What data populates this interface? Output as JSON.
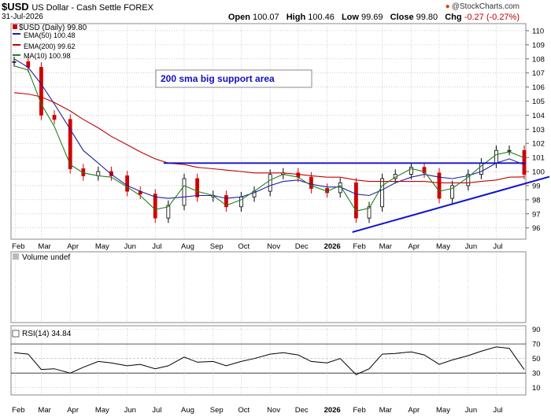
{
  "header": {
    "symbol": "$USD",
    "description": "US Dollar - Cash Settle FOREX",
    "date": "31-Jul-2026",
    "copyright": "@StockCharts.com",
    "quote": {
      "open_label": "Open",
      "open": "100.07",
      "high_label": "High",
      "high": "100.46",
      "low_label": "Low",
      "low": "99.69",
      "close_label": "Close",
      "close": "99.80",
      "chg_label": "Chg",
      "chg": "-0.27 (-0.27%)"
    }
  },
  "legend": {
    "price": "$USD (Daily) 99.80",
    "ema50": "EMA(50) 100.48",
    "ema200": "EMA(200) 99.62",
    "ma10": "MA(10) 100.98"
  },
  "annotation": "200 sma big support area",
  "volume_label": "Volume undef",
  "rsi_label": "RSI(14) 34.84",
  "colors": {
    "ema50": "#2020a0",
    "ema200": "#c00000",
    "ma10": "#208020",
    "trendline": "#1010d0",
    "candle_up": "#000000",
    "candle_down": "#d00000",
    "grid": "#b0b0b0"
  },
  "chart_data": [
    {
      "type": "line",
      "title": "$USD (Daily)",
      "x_axis_labels": [
        "Feb",
        "Mar",
        "Apr",
        "May",
        "Jun",
        "Jul",
        "Aug",
        "Sep",
        "Oct",
        "Nov",
        "Dec",
        "2026",
        "Feb",
        "Mar",
        "Apr",
        "May",
        "Jun",
        "Jul"
      ],
      "y_ticks": [
        96,
        97,
        98,
        99,
        100,
        101,
        102,
        103,
        104,
        105,
        106,
        107,
        108,
        109,
        110
      ],
      "ylim": [
        95.2,
        110.5
      ],
      "grid": true,
      "x": [
        "2025-01-31",
        "2025-02-15",
        "2025-03-01",
        "2025-03-15",
        "2025-04-01",
        "2025-04-15",
        "2025-05-01",
        "2025-05-15",
        "2025-06-01",
        "2025-06-15",
        "2025-07-01",
        "2025-07-15",
        "2025-08-01",
        "2025-08-15",
        "2025-09-01",
        "2025-09-15",
        "2025-10-01",
        "2025-10-15",
        "2025-11-01",
        "2025-11-15",
        "2025-12-01",
        "2025-12-15",
        "2026-01-01",
        "2026-01-15",
        "2026-02-01",
        "2026-02-15",
        "2026-03-01",
        "2026-03-15",
        "2026-04-01",
        "2026-04-15",
        "2026-05-01",
        "2026-05-15",
        "2026-06-01",
        "2026-06-15",
        "2026-07-01",
        "2026-07-15",
        "2026-07-31"
      ],
      "series": [
        {
          "name": "$USD (Daily)",
          "values": [
            107.8,
            107.4,
            104.0,
            103.7,
            100.2,
            99.7,
            100.0,
            99.7,
            98.6,
            98.4,
            96.7,
            97.6,
            99.5,
            98.2,
            98.3,
            97.5,
            98.2,
            98.6,
            99.8,
            99.9,
            99.6,
            98.8,
            98.5,
            99.2,
            96.7,
            97.5,
            99.5,
            99.8,
            100.3,
            99.9,
            98.1,
            99.0,
            99.8,
            100.6,
            101.5,
            101.5,
            99.8
          ]
        },
        {
          "name": "EMA(50)",
          "values": [
            108.0,
            107.4,
            106.2,
            104.8,
            103.0,
            101.5,
            100.6,
            99.8,
            99.0,
            98.6,
            98.2,
            98.1,
            98.2,
            98.3,
            98.3,
            98.1,
            98.2,
            98.5,
            99.0,
            99.3,
            99.4,
            99.1,
            98.9,
            98.9,
            98.4,
            98.3,
            98.7,
            99.2,
            99.6,
            99.8,
            99.6,
            99.5,
            99.7,
            100.0,
            100.6,
            100.9,
            100.48
          ]
        },
        {
          "name": "EMA(200)",
          "values": [
            105.6,
            105.5,
            105.3,
            104.9,
            104.3,
            103.7,
            103.1,
            102.5,
            101.9,
            101.4,
            100.9,
            100.6,
            100.5,
            100.3,
            100.2,
            100.1,
            100.0,
            99.9,
            99.9,
            99.9,
            99.8,
            99.7,
            99.6,
            99.6,
            99.4,
            99.3,
            99.3,
            99.3,
            99.3,
            99.3,
            99.2,
            99.2,
            99.2,
            99.3,
            99.4,
            99.6,
            99.62
          ]
        },
        {
          "name": "MA(10)",
          "values": [
            107.5,
            107.2,
            104.8,
            103.2,
            100.5,
            99.9,
            99.7,
            99.6,
            98.9,
            98.3,
            97.3,
            97.5,
            99.0,
            98.6,
            98.3,
            97.6,
            98.0,
            98.6,
            99.4,
            99.8,
            99.6,
            99.0,
            98.6,
            99.0,
            97.2,
            97.4,
            99.0,
            99.6,
            100.2,
            100.0,
            98.6,
            98.8,
            99.6,
            100.4,
            101.2,
            101.4,
            100.98
          ]
        }
      ],
      "horizontal_line": {
        "value": 100.6,
        "from": "2025-07-10",
        "to": "2026-07-31"
      },
      "trendline": {
        "from": {
          "date": "2026-01-28",
          "value": 95.7
        },
        "to": {
          "date": "2026-07-31",
          "value": 99.3
        }
      }
    },
    {
      "type": "line",
      "title": "RSI(14)",
      "y_ticks": [
        10,
        30,
        50,
        70,
        90
      ],
      "ylim": [
        0,
        95
      ],
      "reference_lines": [
        30,
        70
      ],
      "series": [
        {
          "name": "RSI(14)",
          "values": [
            58,
            56,
            35,
            36,
            30,
            38,
            46,
            44,
            40,
            42,
            36,
            40,
            52,
            45,
            46,
            40,
            46,
            50,
            56,
            58,
            55,
            46,
            44,
            50,
            28,
            36,
            56,
            57,
            59,
            55,
            42,
            48,
            54,
            60,
            66,
            64,
            34.84
          ]
        }
      ]
    }
  ]
}
